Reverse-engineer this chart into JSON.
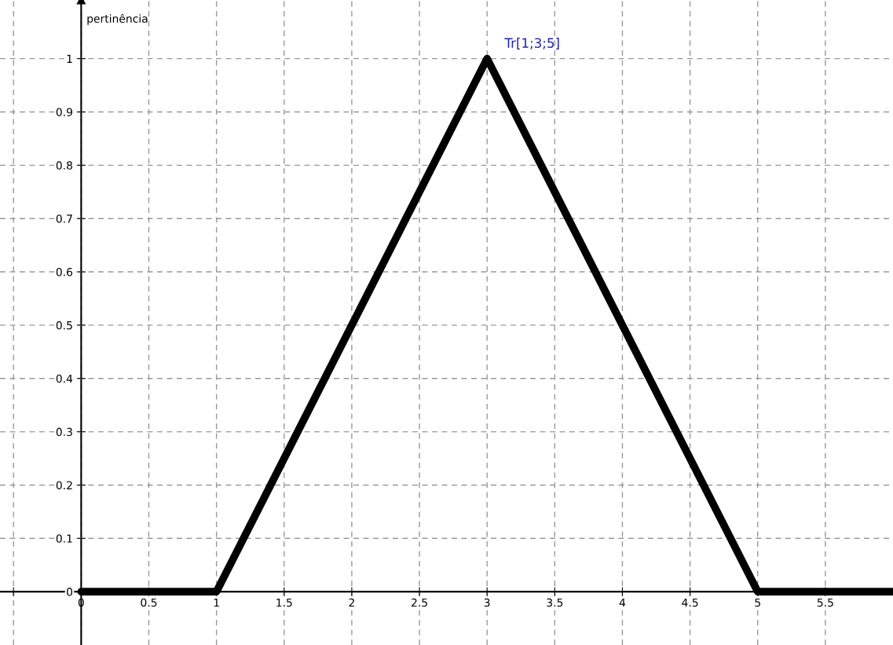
{
  "chart_data": {
    "type": "line",
    "ylabel": "pertinência",
    "x": [
      0,
      1,
      3,
      5,
      6
    ],
    "series": [
      {
        "color": "#000000",
        "values": [
          0,
          0,
          1,
          0,
          0
        ]
      }
    ],
    "annotations": [
      {
        "text": "Tr[1;3;5]",
        "x": 3,
        "y": 1
      }
    ],
    "xlim": [
      -0.6,
      6
    ],
    "ylim": [
      -0.1,
      1.11
    ],
    "xticks": [
      {
        "value": -0.5,
        "label": null
      },
      0,
      0.5,
      1,
      1.5,
      2,
      2.5,
      3,
      3.5,
      4,
      4.5,
      5,
      5.5
    ],
    "yticks": [
      0,
      0.1,
      0.2,
      0.3,
      0.4,
      0.5,
      0.6,
      0.7,
      0.8,
      0.9,
      1
    ],
    "grid": true,
    "marker": "none",
    "line_style": "solid"
  }
}
